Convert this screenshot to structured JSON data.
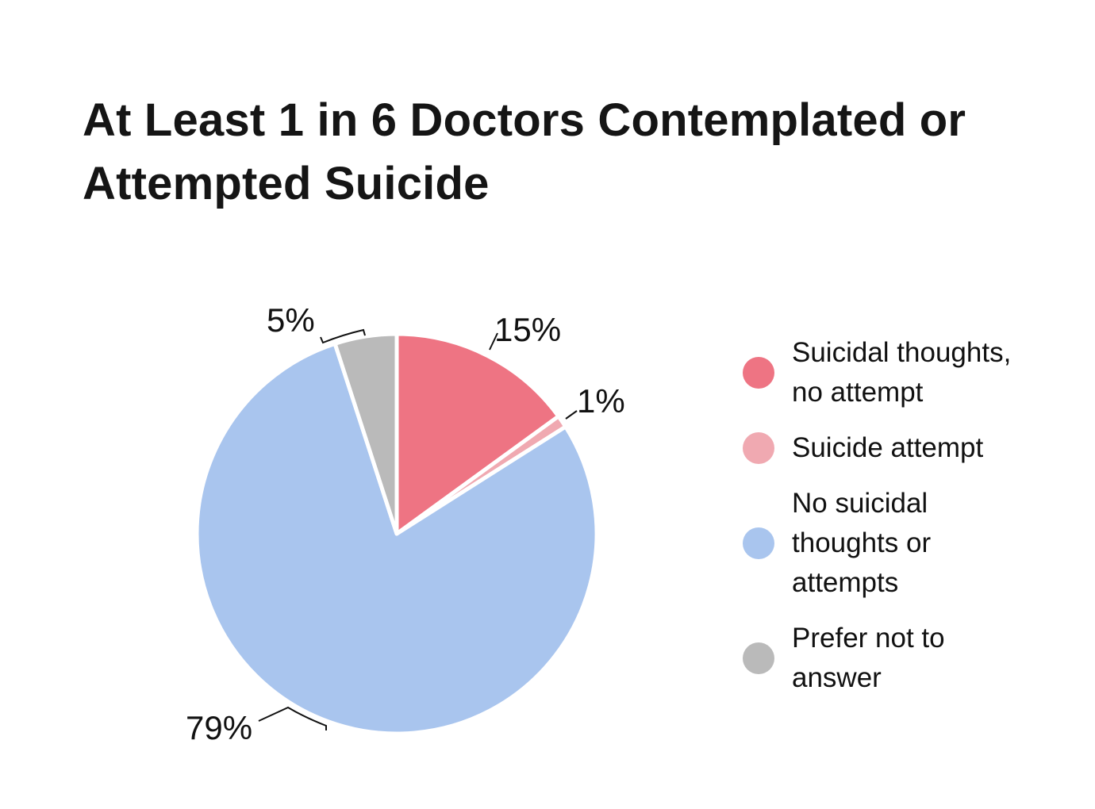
{
  "title": "At Least 1 in 6 Doctors Contemplated or Attempted Suicide",
  "chart_data": {
    "type": "pie",
    "title": "At Least 1 in 6 Doctors Contemplated or Attempted Suicide",
    "categories": [
      "Suicidal thoughts, no attempt",
      "Suicide attempt",
      "No suicidal thoughts or attempts",
      "Prefer not to answer"
    ],
    "values": [
      15,
      1,
      79,
      5
    ],
    "labels": [
      "15%",
      "1%",
      "79%",
      "5%"
    ],
    "colors": [
      "#ee7483",
      "#f0a9b1",
      "#a9c5ee",
      "#bababa"
    ],
    "start_angle": "12 o'clock",
    "direction": "clockwise",
    "legend_position": "right"
  },
  "legend": {
    "items": [
      {
        "label": "Suicidal thoughts, no attempt",
        "color": "#ee7483"
      },
      {
        "label": "Suicide attempt",
        "color": "#f0a9b1"
      },
      {
        "label": "No suicidal thoughts or attempts",
        "color": "#a9c5ee"
      },
      {
        "label": "Prefer not to answer",
        "color": "#bababa"
      }
    ]
  }
}
